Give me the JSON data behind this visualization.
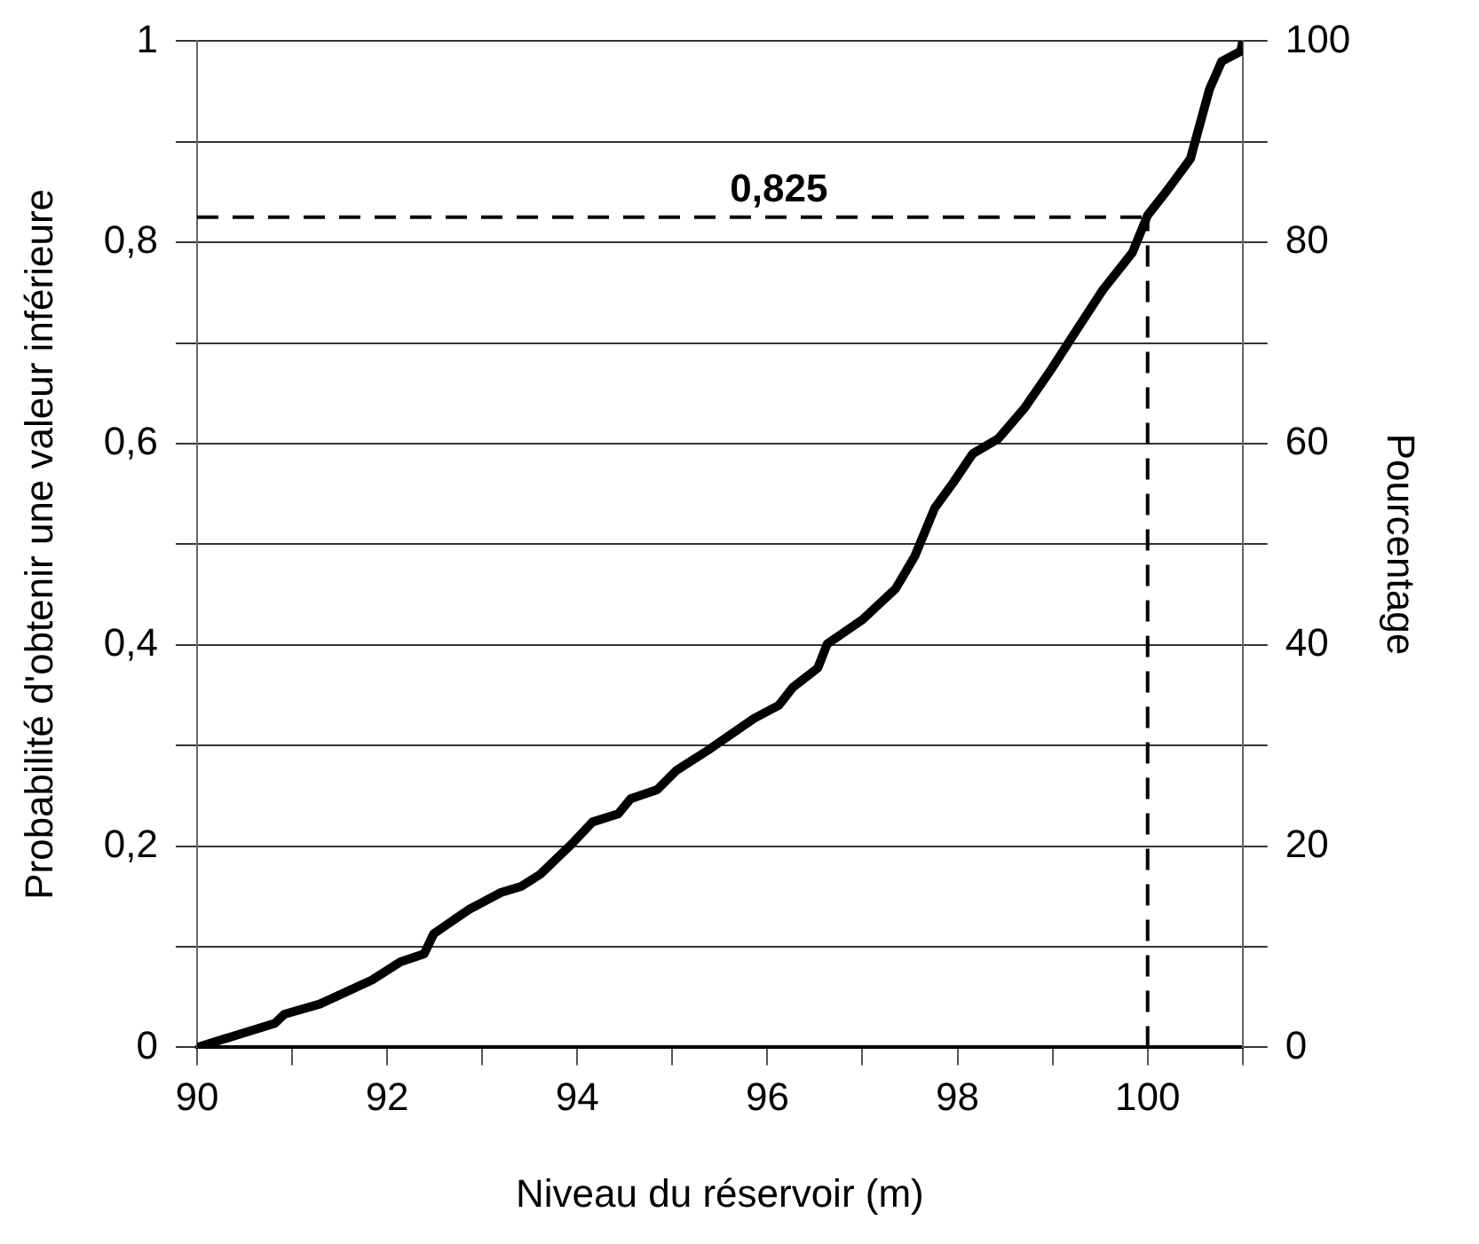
{
  "chart_data": {
    "type": "line",
    "xlabel": "Niveau du réservoir (m)",
    "ylabel": "Probabilité d'obtenir une valeur inférieure",
    "y2label": "Pourcentage",
    "x": [
      90,
      90.82,
      90.92,
      91.29,
      91.84,
      92.14,
      92.39,
      92.49,
      92.86,
      93.2,
      93.41,
      93.61,
      93.94,
      94.16,
      94.43,
      94.56,
      94.84,
      95.04,
      95.37,
      95.57,
      95.86,
      96.12,
      96.27,
      96.53,
      96.63,
      97.0,
      97.35,
      97.55,
      97.76,
      97.96,
      98.16,
      98.43,
      98.71,
      98.98,
      99.24,
      99.53,
      99.84,
      100.0,
      100.2,
      100.45,
      100.65,
      100.78,
      100.98,
      101
    ],
    "series": [
      {
        "color": "#000000",
        "values": [
          0,
          0.024,
          0.033,
          0.043,
          0.067,
          0.085,
          0.093,
          0.113,
          0.137,
          0.154,
          0.16,
          0.172,
          0.202,
          0.224,
          0.232,
          0.247,
          0.256,
          0.275,
          0.295,
          0.308,
          0.327,
          0.34,
          0.358,
          0.377,
          0.401,
          0.425,
          0.456,
          0.488,
          0.536,
          0.562,
          0.59,
          0.605,
          0.636,
          0.673,
          0.711,
          0.753,
          0.79,
          0.827,
          0.851,
          0.883,
          0.952,
          0.98,
          0.99,
          1.0
        ]
      }
    ],
    "xlim": [
      90,
      101
    ],
    "xticks": [
      90,
      {
        "value": 91,
        "label": null
      },
      92,
      {
        "value": 93,
        "label": null
      },
      94,
      {
        "value": 95,
        "label": null
      },
      96,
      {
        "value": 97,
        "label": null
      },
      98,
      {
        "value": 99,
        "label": null
      },
      100,
      {
        "value": 101,
        "label": null
      }
    ],
    "ylim": [
      0,
      1
    ],
    "yticks": [
      0,
      {
        "value": 0.1,
        "label": null
      },
      {
        "value": 0.2,
        "label": "0,2"
      },
      {
        "value": 0.3,
        "label": null
      },
      {
        "value": 0.4,
        "label": "0,4"
      },
      {
        "value": 0.5,
        "label": null
      },
      {
        "value": 0.6,
        "label": "0,6"
      },
      {
        "value": 0.7,
        "label": null
      },
      {
        "value": 0.8,
        "label": "0,8"
      },
      {
        "value": 0.9,
        "label": null
      },
      1
    ],
    "y2lim": [
      0,
      100
    ],
    "y2ticks": [
      0,
      {
        "value": 10,
        "label": null
      },
      20,
      {
        "value": 30,
        "label": null
      },
      40,
      {
        "value": 50,
        "label": null
      },
      60,
      {
        "value": 70,
        "label": null
      },
      80,
      {
        "value": 90,
        "label": null
      },
      100
    ],
    "ref_lines": [
      {
        "axis": "y",
        "value": 0.825,
        "label": "0,825",
        "line_style": "dashed",
        "color": "#000000"
      },
      {
        "axis": "x",
        "value": 100,
        "line_style": "dashed",
        "color": "#000000"
      }
    ],
    "grid": "y",
    "legend": false,
    "marker": "none",
    "line_style": "solid"
  }
}
